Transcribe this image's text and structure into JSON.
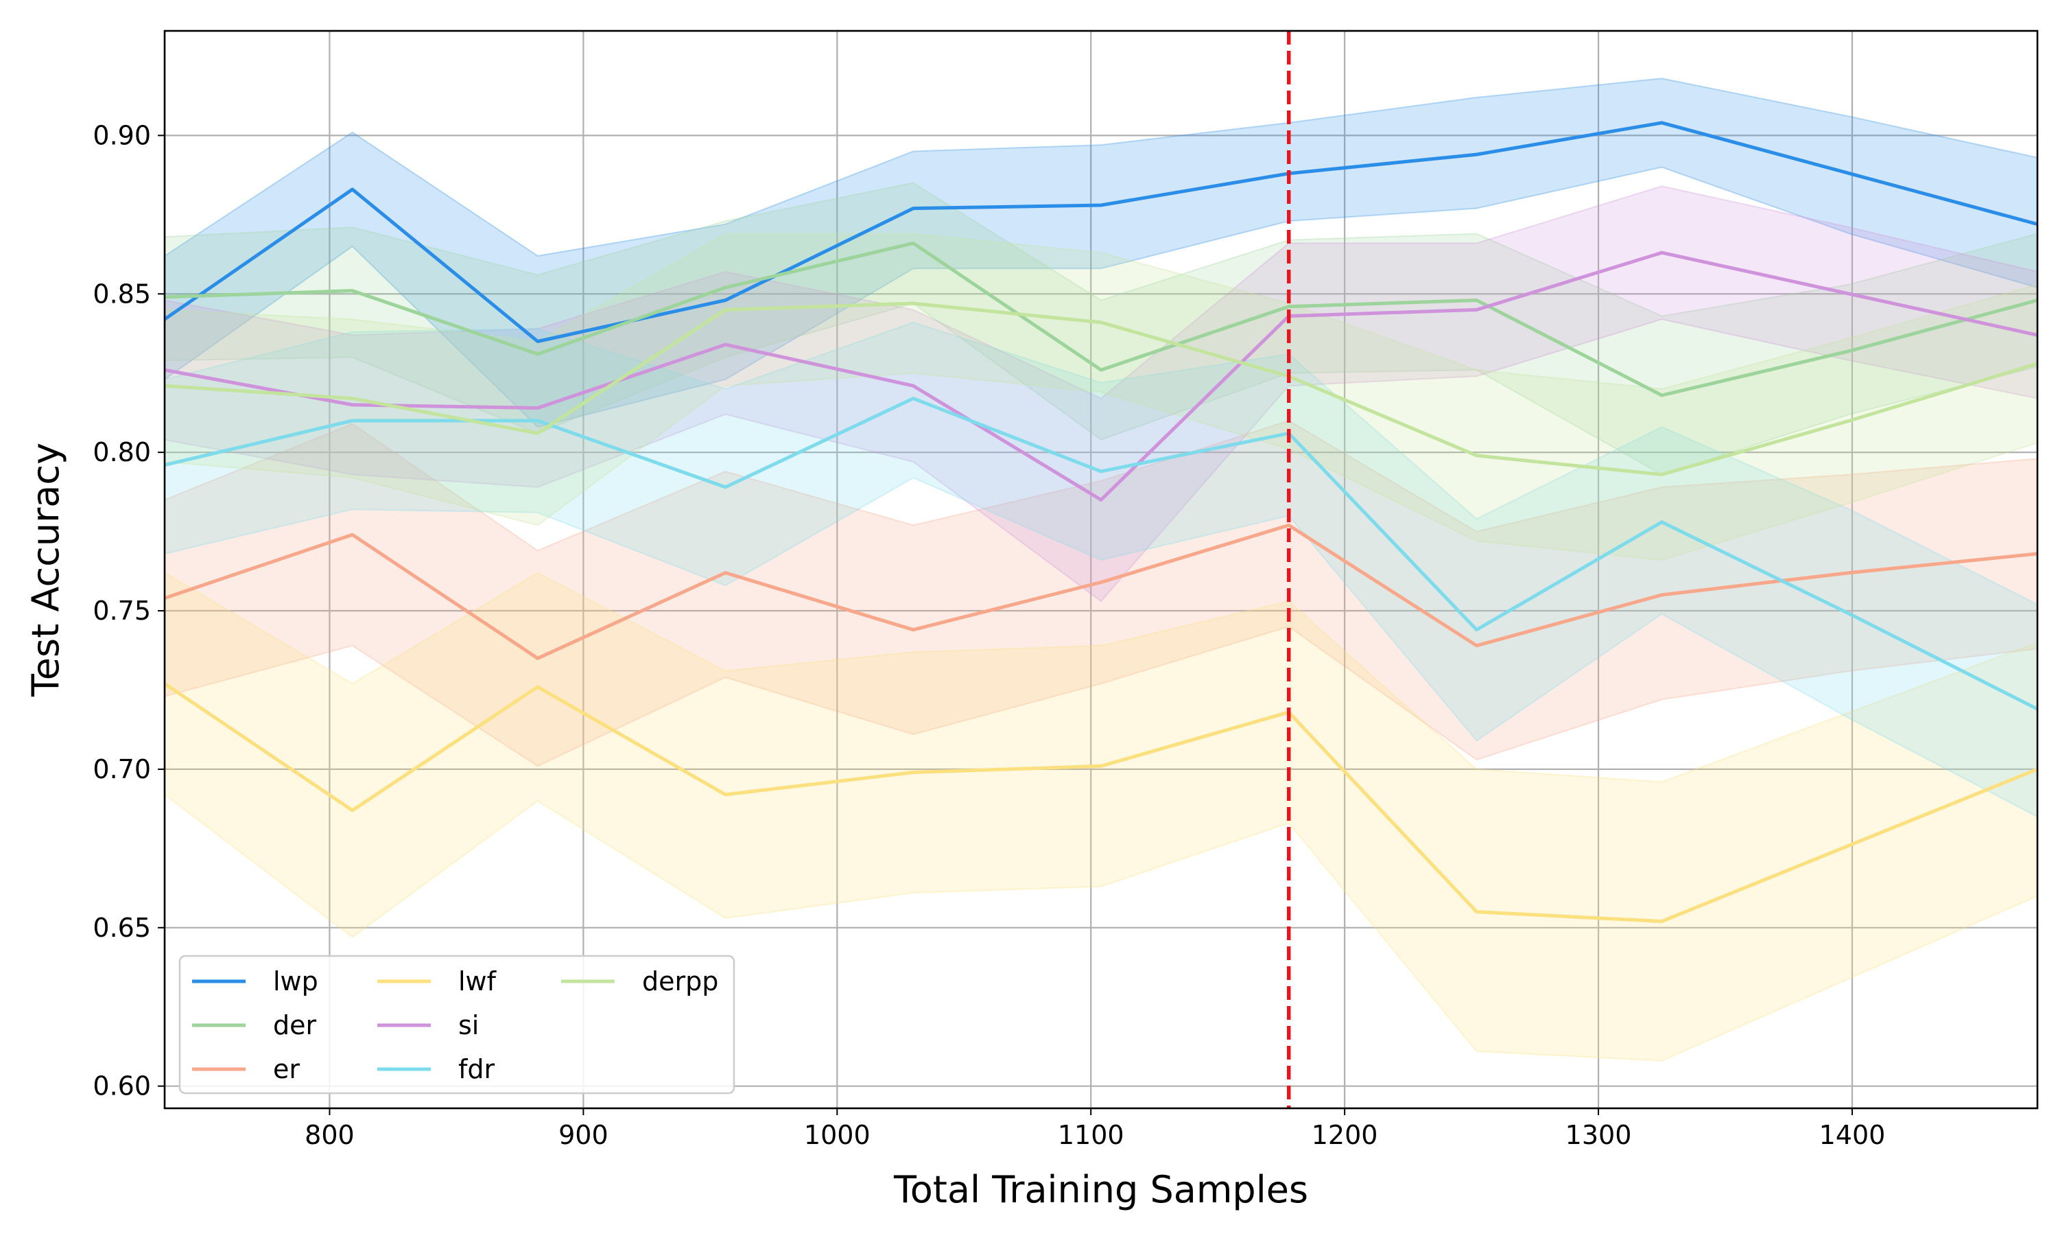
{
  "chart_data": {
    "type": "line",
    "title": "",
    "xlabel": "Total Training Samples",
    "ylabel": "Test Accuracy",
    "xlim": [
      735,
      1473
    ],
    "ylim": [
      0.593,
      0.933
    ],
    "x_ticks": [
      800,
      900,
      1000,
      1100,
      1200,
      1300,
      1400
    ],
    "x_tick_labels": [
      "800",
      "900",
      "1000",
      "1100",
      "1200",
      "1300",
      "1400"
    ],
    "y_ticks": [
      0.6,
      0.65,
      0.7,
      0.75,
      0.8,
      0.85,
      0.9
    ],
    "y_tick_labels": [
      "0.60",
      "0.65",
      "0.70",
      "0.75",
      "0.80",
      "0.85",
      "0.90"
    ],
    "grid": true,
    "legend_position": "bottom-left",
    "legend_columns": 3,
    "x": [
      735,
      809,
      882,
      956,
      1030,
      1104,
      1178,
      1252,
      1325,
      1399,
      1473
    ],
    "vertical_line": {
      "x": 1178,
      "color": "#e8141e",
      "style": "dashed"
    },
    "series": [
      {
        "name": "lwp",
        "color": "#2a8ee8",
        "values": [
          0.842,
          0.883,
          0.835,
          0.848,
          0.877,
          0.878,
          0.888,
          0.894,
          0.904,
          0.888,
          0.872
        ],
        "lower": [
          0.823,
          0.865,
          0.808,
          0.823,
          0.858,
          0.858,
          0.873,
          0.877,
          0.89,
          0.869,
          0.852
        ],
        "upper": [
          0.862,
          0.901,
          0.862,
          0.872,
          0.895,
          0.897,
          0.904,
          0.912,
          0.918,
          0.906,
          0.893
        ]
      },
      {
        "name": "der",
        "color": "#9dd49b",
        "values": [
          0.849,
          0.851,
          0.831,
          0.852,
          0.866,
          0.826,
          0.846,
          0.848,
          0.818,
          0.832,
          0.848
        ],
        "lower": [
          0.829,
          0.83,
          0.806,
          0.83,
          0.847,
          0.804,
          0.825,
          0.826,
          0.793,
          0.812,
          0.827
        ],
        "upper": [
          0.868,
          0.871,
          0.856,
          0.873,
          0.885,
          0.848,
          0.867,
          0.869,
          0.843,
          0.853,
          0.869
        ]
      },
      {
        "name": "er",
        "color": "#f8a78a",
        "values": [
          0.754,
          0.774,
          0.735,
          0.762,
          0.744,
          0.759,
          0.777,
          0.739,
          0.755,
          0.762,
          0.768
        ],
        "lower": [
          0.723,
          0.739,
          0.701,
          0.729,
          0.711,
          0.727,
          0.745,
          0.703,
          0.722,
          0.731,
          0.738
        ],
        "upper": [
          0.785,
          0.809,
          0.769,
          0.794,
          0.777,
          0.791,
          0.81,
          0.775,
          0.789,
          0.793,
          0.798
        ]
      },
      {
        "name": "lwf",
        "color": "#fde07e",
        "values": [
          0.727,
          0.687,
          0.726,
          0.692,
          0.699,
          0.701,
          0.718,
          0.655,
          0.652,
          0.676,
          0.7
        ],
        "lower": [
          0.692,
          0.647,
          0.69,
          0.653,
          0.661,
          0.663,
          0.683,
          0.611,
          0.608,
          0.634,
          0.66
        ],
        "upper": [
          0.762,
          0.727,
          0.762,
          0.731,
          0.737,
          0.739,
          0.753,
          0.7,
          0.696,
          0.718,
          0.74
        ]
      },
      {
        "name": "si",
        "color": "#cf93dc",
        "values": [
          0.826,
          0.815,
          0.814,
          0.834,
          0.821,
          0.785,
          0.843,
          0.845,
          0.863,
          0.85,
          0.837
        ],
        "lower": [
          0.804,
          0.793,
          0.789,
          0.812,
          0.797,
          0.753,
          0.821,
          0.824,
          0.842,
          0.829,
          0.817
        ],
        "upper": [
          0.848,
          0.837,
          0.839,
          0.857,
          0.845,
          0.817,
          0.866,
          0.866,
          0.884,
          0.871,
          0.857
        ]
      },
      {
        "name": "fdr",
        "color": "#7ddbeb",
        "values": [
          0.796,
          0.81,
          0.81,
          0.789,
          0.817,
          0.794,
          0.806,
          0.744,
          0.778,
          0.749,
          0.719
        ],
        "lower": [
          0.768,
          0.782,
          0.781,
          0.758,
          0.792,
          0.766,
          0.78,
          0.709,
          0.749,
          0.716,
          0.685
        ],
        "upper": [
          0.823,
          0.838,
          0.839,
          0.82,
          0.841,
          0.822,
          0.831,
          0.779,
          0.808,
          0.782,
          0.752
        ]
      },
      {
        "name": "derpp",
        "color": "#c3e49c",
        "values": [
          0.821,
          0.817,
          0.806,
          0.845,
          0.847,
          0.841,
          0.824,
          0.799,
          0.793,
          0.81,
          0.828
        ],
        "lower": [
          0.797,
          0.792,
          0.777,
          0.821,
          0.825,
          0.819,
          0.801,
          0.772,
          0.766,
          0.784,
          0.803
        ],
        "upper": [
          0.845,
          0.842,
          0.835,
          0.869,
          0.869,
          0.863,
          0.847,
          0.826,
          0.82,
          0.836,
          0.853
        ]
      }
    ]
  }
}
